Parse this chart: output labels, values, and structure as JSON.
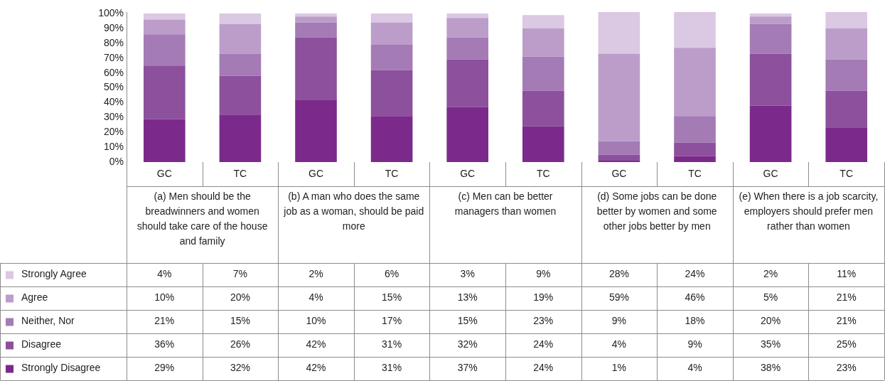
{
  "chart_data": {
    "type": "bar",
    "stacked": true,
    "categories": [
      "GC",
      "TC",
      "GC",
      "TC",
      "GC",
      "TC",
      "GC",
      "TC",
      "GC",
      "TC"
    ],
    "series": [
      {
        "name": "Strongly Disagree",
        "color": "#7b2a8b",
        "values": [
          29,
          32,
          42,
          31,
          37,
          24,
          1,
          4,
          38,
          23
        ],
        "value_labels": [
          "29%",
          "32%",
          "42%",
          "31%",
          "37%",
          "24%",
          "1%",
          "4%",
          "38%",
          "23%"
        ]
      },
      {
        "name": "Disagree",
        "color": "#8c509d",
        "values": [
          36,
          26,
          42,
          31,
          32,
          24,
          4,
          9,
          35,
          25
        ],
        "value_labels": [
          "36%",
          "26%",
          "42%",
          "31%",
          "32%",
          "24%",
          "4%",
          "9%",
          "35%",
          "25%"
        ]
      },
      {
        "name": "Neither, Nor",
        "color": "#a47bb5",
        "values": [
          21,
          15,
          10,
          17,
          15,
          23,
          9,
          18,
          20,
          21
        ],
        "value_labels": [
          "21%",
          "15%",
          "10%",
          "17%",
          "15%",
          "23%",
          "9%",
          "18%",
          "20%",
          "21%"
        ]
      },
      {
        "name": "Agree",
        "color": "#bc9dca",
        "values": [
          10,
          20,
          4,
          15,
          13,
          19,
          59,
          46,
          5,
          21
        ],
        "value_labels": [
          "10%",
          "20%",
          "4%",
          "15%",
          "13%",
          "19%",
          "59%",
          "46%",
          "5%",
          "21%"
        ]
      },
      {
        "name": "Strongly Agree",
        "color": "#dbc8e2",
        "values": [
          4,
          7,
          2,
          6,
          3,
          9,
          28,
          24,
          2,
          11
        ],
        "value_labels": [
          "4%",
          "7%",
          "2%",
          "6%",
          "3%",
          "9%",
          "28%",
          "24%",
          "2%",
          "11%"
        ]
      }
    ],
    "ylim": [
      0,
      101
    ],
    "yticks": [
      {
        "value": 0,
        "label": "0%"
      },
      {
        "value": 10,
        "label": "10%"
      },
      {
        "value": 20,
        "label": "20%"
      },
      {
        "value": 30,
        "label": "30%"
      },
      {
        "value": 40,
        "label": "40%"
      },
      {
        "value": 50,
        "label": "50%"
      },
      {
        "value": 60,
        "label": "60%"
      },
      {
        "value": 70,
        "label": "70%"
      },
      {
        "value": 80,
        "label": "80%"
      },
      {
        "value": 90,
        "label": "90%"
      },
      {
        "value": 100,
        "label": "100%"
      }
    ],
    "grid": false,
    "legend": "bottom left",
    "annotations": [
      "(a) Men should be the breadwinners and women should take care of the house and family",
      "(b) A man who does the same job as a woman, should be paid more",
      "(c) Men can be better managers than women",
      "(d) Some jobs can be done better by women and some other jobs better by men",
      "(e) When there is a job scarcity, employers should prefer men rather than women"
    ]
  }
}
